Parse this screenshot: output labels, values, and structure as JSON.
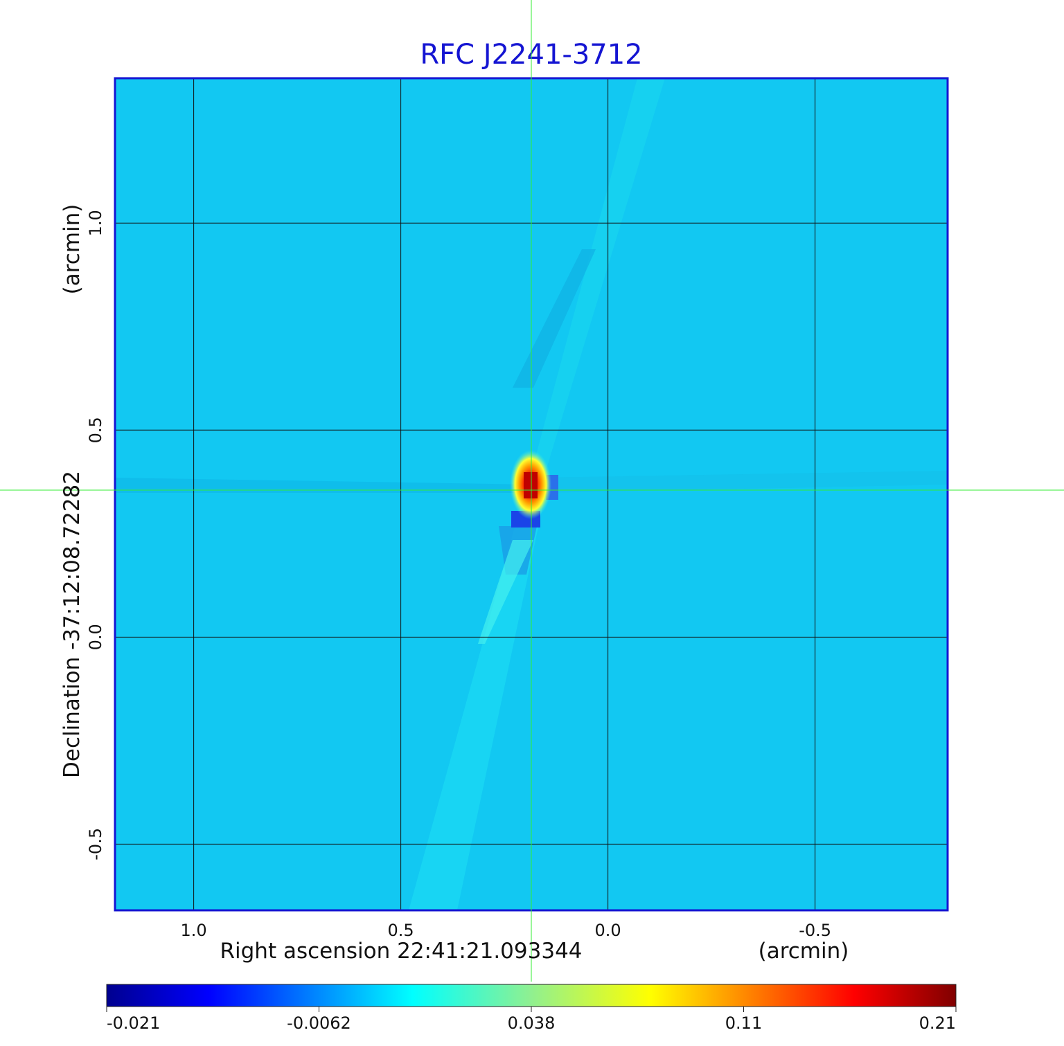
{
  "chart_data": {
    "type": "heatmap",
    "title": "RFC J2241-3712",
    "xlabel": "Right ascension  22:41:21.093344",
    "xunit": "(arcmin)",
    "ylabel": "Declination  -37:12:08.72282",
    "yunit": "(arcmin)",
    "x_ticks": [
      "1.0",
      "0.5",
      "0.0",
      "-0.5"
    ],
    "x_tick_values": [
      1.0,
      0.5,
      0.0,
      -0.5
    ],
    "y_ticks": [
      "1.0",
      "0.5",
      "0.0",
      "-0.5"
    ],
    "y_tick_values": [
      1.0,
      0.5,
      0.0,
      -0.5
    ],
    "xlim": [
      1.19,
      -0.82
    ],
    "ylim": [
      -0.66,
      1.35
    ],
    "grid": true,
    "colorbar": {
      "ticks": [
        "-0.021",
        "-0.0062",
        "0.038",
        "0.11",
        "0.21"
      ],
      "colormap": "jet"
    },
    "crosshair": {
      "x": 0.185,
      "y": 0.355
    },
    "peak": {
      "x": 0.185,
      "y": 0.355,
      "value": 0.21
    },
    "colors": {
      "title": "#1414d2",
      "frame": "#1414d2",
      "crosshair": "#33ee33",
      "background": "#12c8f2"
    }
  }
}
